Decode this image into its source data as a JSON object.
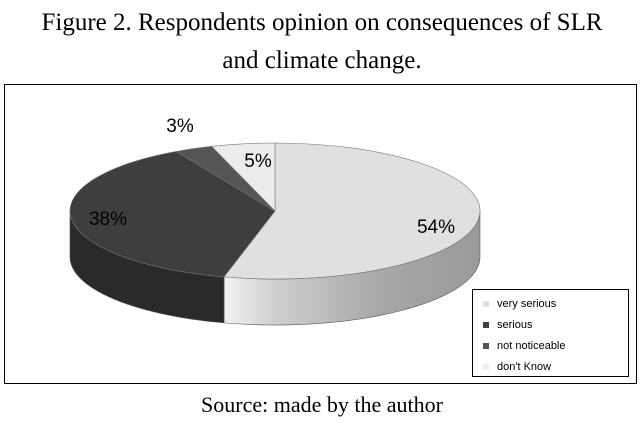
{
  "chart_data": {
    "type": "pie",
    "title_line1": "Figure 2. Respondents opinion on consequences of SLR",
    "title_line2": "and climate change.",
    "slices": [
      {
        "name": "very serious",
        "value": 54,
        "label": "54%",
        "color": "#e0e0e0",
        "side_color": "#b8b8b8"
      },
      {
        "name": "serious",
        "value": 38,
        "label": "38%",
        "color": "#3e3e3e",
        "side_color": "#2a2a2a"
      },
      {
        "name": "not noticeable",
        "value": 3,
        "label": "3%",
        "color": "#555555",
        "side_color": "#383838"
      },
      {
        "name": "don't Know",
        "value": 5,
        "label": "5%",
        "color": "#ececec",
        "side_color": "#c8c8c8"
      }
    ],
    "legend_placement": "bottom-right",
    "source": "Source: made by the author"
  }
}
